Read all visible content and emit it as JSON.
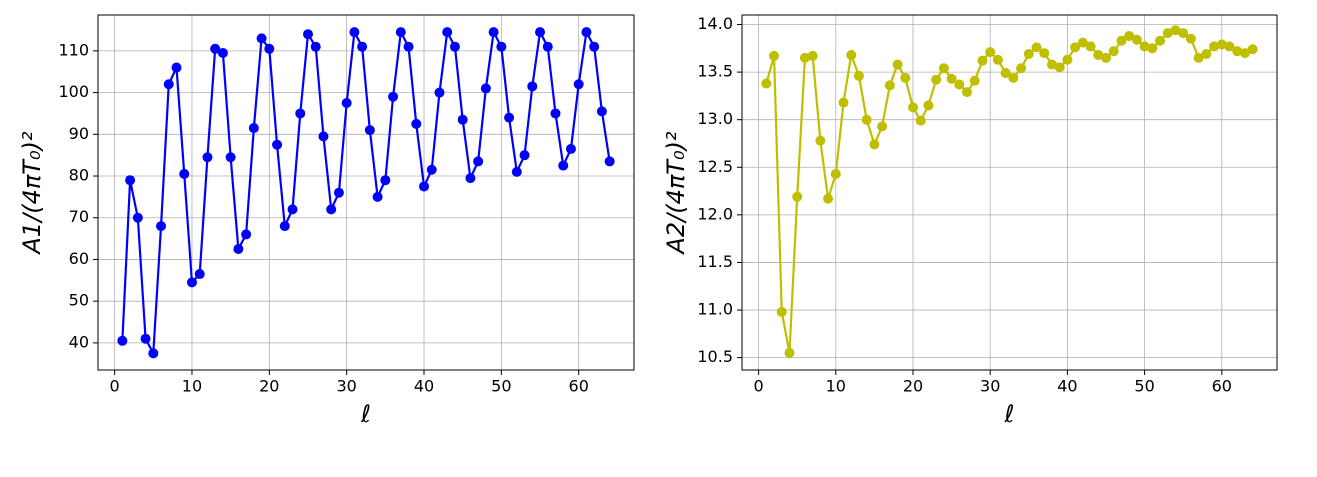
{
  "chart_data": [
    {
      "type": "line",
      "xlabel": "ℓ",
      "ylabel": "A1/(4πT₀)²",
      "color": "#0000ff",
      "grid": true,
      "x": [
        1,
        2,
        3,
        4,
        5,
        6,
        7,
        8,
        9,
        10,
        11,
        12,
        13,
        14,
        15,
        16,
        17,
        18,
        19,
        20,
        21,
        22,
        23,
        24,
        25,
        26,
        27,
        28,
        29,
        30,
        31,
        32,
        33,
        34,
        35,
        36,
        37,
        38,
        39,
        40,
        41,
        42,
        43,
        44,
        45,
        46,
        47,
        48,
        49,
        50,
        51,
        52,
        53,
        54,
        55,
        56,
        57,
        58,
        59,
        60,
        61,
        62,
        63,
        64
      ],
      "values": [
        40.5,
        79,
        70,
        41,
        37.5,
        68,
        102,
        106,
        80.5,
        54.5,
        56.5,
        84.5,
        110.5,
        109.5,
        84.5,
        62.5,
        66,
        91.5,
        113,
        110.5,
        87.5,
        68,
        72,
        95,
        114,
        111,
        89.5,
        72,
        76,
        97.5,
        114.5,
        111,
        91,
        75,
        79,
        99,
        114.5,
        111,
        92.5,
        77.5,
        81.5,
        100,
        114.5,
        111,
        93.5,
        79.5,
        83.5,
        101,
        114.5,
        111,
        94,
        81,
        85,
        101.5,
        114.5,
        111,
        95,
        82.5,
        86.5,
        102,
        114.5,
        111,
        95.5,
        83.5
      ],
      "xlim": [
        -2.15,
        67.15
      ],
      "xticks": [
        0,
        10,
        20,
        30,
        40,
        50,
        60
      ],
      "ylim": [
        33.5,
        118.6
      ],
      "yticks": [
        40,
        50,
        60,
        70,
        80,
        90,
        100,
        110
      ]
    },
    {
      "type": "line",
      "xlabel": "ℓ",
      "ylabel": "A2/(4πT₀)²",
      "color": "#bfbf00",
      "grid": true,
      "x": [
        1,
        2,
        3,
        4,
        5,
        6,
        7,
        8,
        9,
        10,
        11,
        12,
        13,
        14,
        15,
        16,
        17,
        18,
        19,
        20,
        21,
        22,
        23,
        24,
        25,
        26,
        27,
        28,
        29,
        30,
        31,
        32,
        33,
        34,
        35,
        36,
        37,
        38,
        39,
        40,
        41,
        42,
        43,
        44,
        45,
        46,
        47,
        48,
        49,
        50,
        51,
        52,
        53,
        54,
        55,
        56,
        57,
        58,
        59,
        60,
        61,
        62,
        63,
        64
      ],
      "values": [
        13.38,
        13.67,
        10.98,
        10.55,
        12.19,
        13.65,
        13.67,
        12.78,
        12.17,
        12.43,
        13.18,
        13.68,
        13.46,
        13.0,
        12.74,
        12.93,
        13.36,
        13.58,
        13.44,
        13.13,
        12.99,
        13.15,
        13.42,
        13.54,
        13.43,
        13.37,
        13.29,
        13.41,
        13.62,
        13.71,
        13.63,
        13.49,
        13.44,
        13.54,
        13.69,
        13.76,
        13.7,
        13.58,
        13.55,
        13.63,
        13.76,
        13.81,
        13.77,
        13.68,
        13.65,
        13.72,
        13.83,
        13.88,
        13.84,
        13.77,
        13.75,
        13.83,
        13.91,
        13.94,
        13.91,
        13.85,
        13.65,
        13.69,
        13.77,
        13.79,
        13.77,
        13.72,
        13.7,
        13.74
      ],
      "xlim": [
        -2.15,
        67.15
      ],
      "xticks": [
        0,
        10,
        20,
        30,
        40,
        50,
        60
      ],
      "ylim": [
        10.37,
        14.1
      ],
      "yticks": [
        10.5,
        {
          "value": 11,
          "label": "11.0"
        },
        11.5,
        {
          "value": 12,
          "label": "12.0"
        },
        12.5,
        {
          "value": 13,
          "label": "13.0"
        },
        13.5,
        {
          "value": 14,
          "label": "14.0"
        }
      ]
    }
  ]
}
